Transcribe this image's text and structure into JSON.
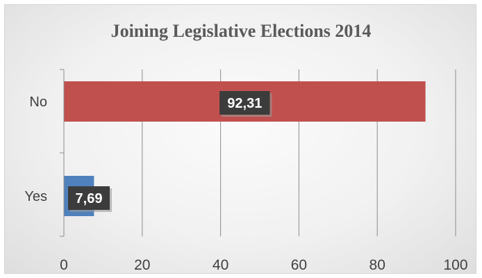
{
  "chart_data": {
    "type": "bar",
    "orientation": "horizontal",
    "title": "Joining Legislative Elections 2014",
    "categories": [
      "No",
      "Yes"
    ],
    "values": [
      92.31,
      7.69
    ],
    "data_labels": [
      "92,31",
      "7,69"
    ],
    "colors": [
      "#c0504d",
      "#4f81bd"
    ],
    "xlim": [
      0,
      100
    ],
    "x_ticks": [
      0,
      20,
      40,
      60,
      80,
      100
    ],
    "xlabel": "",
    "ylabel": "",
    "grid": true,
    "legend": "none"
  }
}
